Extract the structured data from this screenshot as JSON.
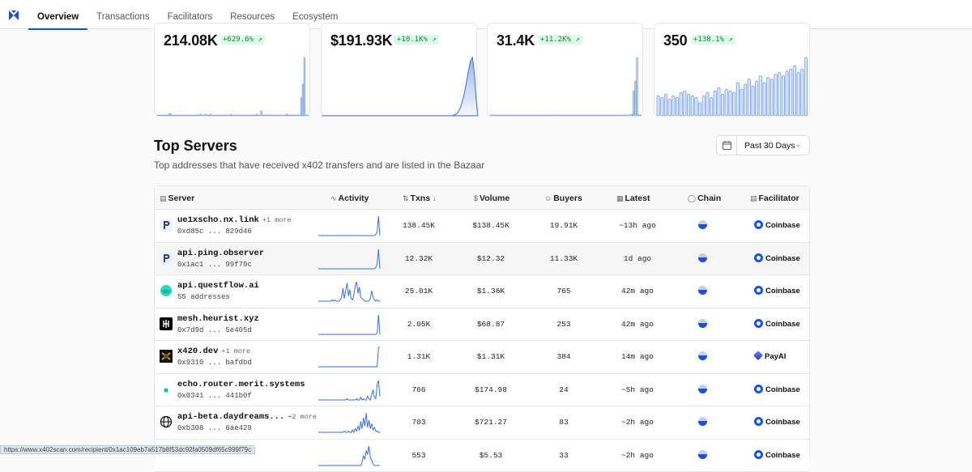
{
  "nav": {
    "tabs": [
      "Overview",
      "Transactions",
      "Facilitators",
      "Resources",
      "Ecosystem"
    ],
    "active": "Overview"
  },
  "stats": [
    {
      "value": "214.08K",
      "change": "+629.6% ↗",
      "series": [
        0,
        0,
        1,
        0,
        0,
        0,
        1,
        2,
        3,
        1,
        0,
        0,
        0,
        0,
        1,
        0,
        0,
        0,
        0,
        0,
        0,
        0,
        1,
        0,
        0,
        1,
        1,
        2,
        1,
        0,
        2,
        1,
        1,
        2,
        1,
        0,
        0,
        0,
        1,
        0,
        0,
        0,
        0,
        0,
        1,
        1,
        2,
        1,
        1,
        0,
        0,
        0,
        1,
        0,
        0,
        0,
        1,
        0,
        0,
        0,
        1,
        1,
        2,
        1,
        1,
        6,
        1,
        0,
        0,
        0,
        0,
        0,
        0,
        0,
        0,
        0,
        0,
        0,
        0,
        1,
        1,
        2,
        1,
        1,
        1,
        0,
        0,
        0,
        0,
        0,
        22,
        38,
        70,
        0,
        0
      ]
    },
    {
      "value": "$191.93K",
      "change": "+10.1K% ↗",
      "series": [
        0,
        0,
        0,
        0,
        0,
        0,
        0,
        0,
        0,
        0,
        0,
        0,
        0,
        0,
        0,
        0,
        0,
        0,
        0,
        0,
        0,
        0,
        0,
        0,
        0,
        0,
        0,
        0,
        0,
        0,
        0,
        0,
        0,
        0,
        0,
        0,
        0,
        0,
        0,
        0,
        0,
        0,
        0,
        0,
        0,
        0,
        0,
        0,
        0,
        0,
        0,
        0,
        0,
        0,
        0,
        0,
        0,
        0,
        0,
        0,
        0,
        0,
        0,
        0,
        0,
        0,
        0,
        0,
        0,
        0,
        0,
        0,
        0,
        1,
        2,
        4,
        8,
        14,
        22,
        32,
        44,
        56,
        66,
        70,
        52,
        20,
        0
      ]
    },
    {
      "value": "31.4K",
      "change": "+11.2K% ↗",
      "series": [
        0,
        0,
        0,
        0,
        0,
        0,
        0,
        0,
        0,
        0,
        0,
        0,
        0,
        0,
        0,
        0,
        0,
        0,
        0,
        0,
        0,
        0,
        0,
        0,
        0,
        0,
        0,
        0,
        0,
        0,
        0,
        0,
        0,
        0,
        0,
        0,
        0,
        0,
        0,
        0,
        0,
        0,
        0,
        0,
        0,
        0,
        0,
        0,
        0,
        0,
        0,
        0,
        0,
        0,
        0,
        0,
        0,
        0,
        0,
        0,
        0,
        0,
        0,
        0,
        0,
        0,
        0,
        0,
        0,
        0,
        0,
        0,
        0,
        0,
        0,
        0,
        0,
        0,
        0,
        0,
        0,
        0,
        0,
        0,
        2,
        30,
        42,
        70,
        0,
        0
      ]
    },
    {
      "value": "350",
      "change": "+138.1% ↗",
      "series": [
        24,
        22,
        26,
        20,
        24,
        22,
        28,
        30,
        26,
        24,
        22,
        16,
        24,
        28,
        22,
        30,
        34,
        26,
        32,
        30,
        28,
        40,
        32,
        38,
        44,
        36,
        42,
        48,
        40,
        46,
        44,
        50,
        52,
        48,
        54,
        56,
        60,
        52,
        56,
        70
      ]
    }
  ],
  "section": {
    "title": "Top Servers",
    "subtitle": "Top addresses that have received x402 transfers and are listed in the Bazaar",
    "period": "Past 30 Days"
  },
  "table": {
    "columns": [
      "Server",
      "Activity",
      "Txns",
      "Volume",
      "Buyers",
      "Latest",
      "Chain",
      "Facilitator"
    ],
    "rows": [
      {
        "name": "ue1xscho.nx.link",
        "more": "+1 more",
        "addr": "0xd85c ... 829d46",
        "txns": "138.45K",
        "volume": "$138.45K",
        "buyers": "19.91K",
        "latest": "~13h ago",
        "facilitator": "Coinbase",
        "icon": "p-logo",
        "activity": [
          0,
          0,
          0,
          0,
          0,
          0,
          0,
          0,
          0,
          0,
          0,
          0,
          0,
          0,
          0,
          0,
          0,
          0,
          0,
          0,
          0,
          0,
          0,
          0,
          0,
          0,
          0,
          0,
          0,
          0,
          0,
          0,
          0,
          0,
          0,
          0,
          0,
          0,
          0,
          0,
          0,
          0,
          1,
          3,
          16,
          0
        ]
      },
      {
        "name": "api.ping.observer",
        "more": "",
        "addr": "0x1ac1 ... 99f79c",
        "txns": "12.32K",
        "volume": "$12.32",
        "buyers": "11.33K",
        "latest": "1d ago",
        "facilitator": "Coinbase",
        "icon": "p-logo",
        "activity": [
          0,
          0,
          0,
          0,
          0,
          0,
          0,
          0,
          0,
          0,
          0,
          0,
          0,
          0,
          0,
          0,
          0,
          0,
          0,
          0,
          0,
          0,
          0,
          0,
          0,
          0,
          0,
          0,
          0,
          0,
          0,
          0,
          0,
          0,
          0,
          0,
          0,
          0,
          0,
          0,
          0,
          0,
          1,
          4,
          15,
          0
        ]
      },
      {
        "name": "api.questflow.ai",
        "more": "",
        "addr": "55 addresses",
        "txns": "25.01K",
        "volume": "$1.36K",
        "buyers": "765",
        "latest": "42m ago",
        "facilitator": "Coinbase",
        "icon": "teal-circle",
        "activity": [
          0,
          0,
          0,
          0,
          0,
          0,
          0,
          0,
          0,
          0,
          1,
          0,
          1,
          0,
          0,
          0,
          1,
          3,
          10,
          2,
          8,
          14,
          4,
          9,
          2,
          1,
          5,
          12,
          15,
          6,
          11,
          3,
          2,
          1,
          0,
          0,
          0,
          0,
          2,
          8,
          3,
          1,
          0,
          1,
          0,
          0
        ]
      },
      {
        "name": "mesh.heurist.xyz",
        "more": "",
        "addr": "0x7d9d ... 5e405d",
        "txns": "2.05K",
        "volume": "$68.87",
        "buyers": "253",
        "latest": "42m ago",
        "facilitator": "Coinbase",
        "icon": "heurist-logo",
        "activity": [
          0,
          0,
          0,
          0,
          0,
          0,
          0,
          0,
          0,
          0,
          0,
          0,
          0,
          0,
          0,
          0,
          0,
          0,
          0,
          0,
          0,
          0,
          0,
          0,
          0,
          0,
          0,
          0,
          0,
          0,
          0,
          0,
          0,
          0,
          0,
          0,
          0,
          0,
          0,
          0,
          0,
          0,
          0,
          1,
          16,
          0
        ]
      },
      {
        "name": "x420.dev",
        "more": "+1 more",
        "addr": "0x9310 ... bafdbd",
        "txns": "1.31K",
        "volume": "$1.31K",
        "buyers": "384",
        "latest": "14m ago",
        "facilitator": "PayAI",
        "icon": "x420-logo",
        "activity": [
          0,
          0,
          0,
          0,
          0,
          0,
          0,
          0,
          0,
          0,
          0,
          0,
          0,
          0,
          0,
          0,
          0,
          0,
          0,
          0,
          0,
          0,
          0,
          0,
          0,
          0,
          0,
          0,
          0,
          0,
          0,
          0,
          0,
          0,
          0,
          0,
          0,
          0,
          0,
          0,
          0,
          0,
          0,
          0,
          16,
          16
        ]
      },
      {
        "name": "echo.router.merit.systems",
        "more": "",
        "addr": "0x0341 ... 441b0f",
        "txns": "766",
        "volume": "$174.98",
        "buyers": "24",
        "latest": "~5h ago",
        "facilitator": "Coinbase",
        "icon": "teal-dot",
        "activity": [
          0,
          0,
          0,
          0,
          0,
          0,
          0,
          0,
          0,
          0,
          0,
          0,
          0,
          0,
          0,
          0,
          0,
          0,
          0,
          0,
          0,
          1,
          0,
          0,
          0,
          0,
          0,
          0,
          1,
          0,
          0,
          2,
          0,
          1,
          0,
          0,
          3,
          1,
          0,
          4,
          8,
          2,
          1,
          12,
          15,
          3
        ]
      },
      {
        "name": "api-beta.daydreams...",
        "more": "+2 more",
        "addr": "0xb308 ... 6ae429",
        "txns": "703",
        "volume": "$721.27",
        "buyers": "83",
        "latest": "~2h ago",
        "facilitator": "Coinbase",
        "icon": "globe-icon",
        "activity": [
          0,
          0,
          0,
          0,
          0,
          0,
          0,
          0,
          0,
          0,
          0,
          0,
          0,
          0,
          0,
          0,
          0,
          0,
          0,
          1,
          0,
          0,
          1,
          0,
          0,
          2,
          0,
          3,
          1,
          5,
          2,
          9,
          3,
          12,
          5,
          16,
          4,
          10,
          3,
          7,
          2,
          4,
          1,
          1,
          0,
          0
        ]
      },
      {
        "name": "",
        "more": "",
        "addr": "",
        "txns": "553",
        "volume": "$5.53",
        "buyers": "33",
        "latest": "~2h ago",
        "facilitator": "Coinbase",
        "icon": "blank",
        "activity": [
          0,
          0,
          0,
          0,
          0,
          0,
          0,
          0,
          0,
          0,
          0,
          0,
          0,
          0,
          0,
          0,
          0,
          0,
          0,
          0,
          0,
          0,
          0,
          0,
          0,
          0,
          0,
          0,
          0,
          0,
          0,
          0,
          2,
          6,
          4,
          9,
          7,
          12,
          5,
          3,
          1,
          0,
          0,
          0,
          0,
          0
        ]
      }
    ]
  },
  "status_url": "https://www.x402scan.com/recipient/0x1ac109eb7a517b8f53dc92fa0509df65c999f79c",
  "colors": {
    "accent": "#1d4ed8",
    "positive": "#15803d",
    "positive_bg": "#dcfce7",
    "spark": "#3b6fd8"
  }
}
